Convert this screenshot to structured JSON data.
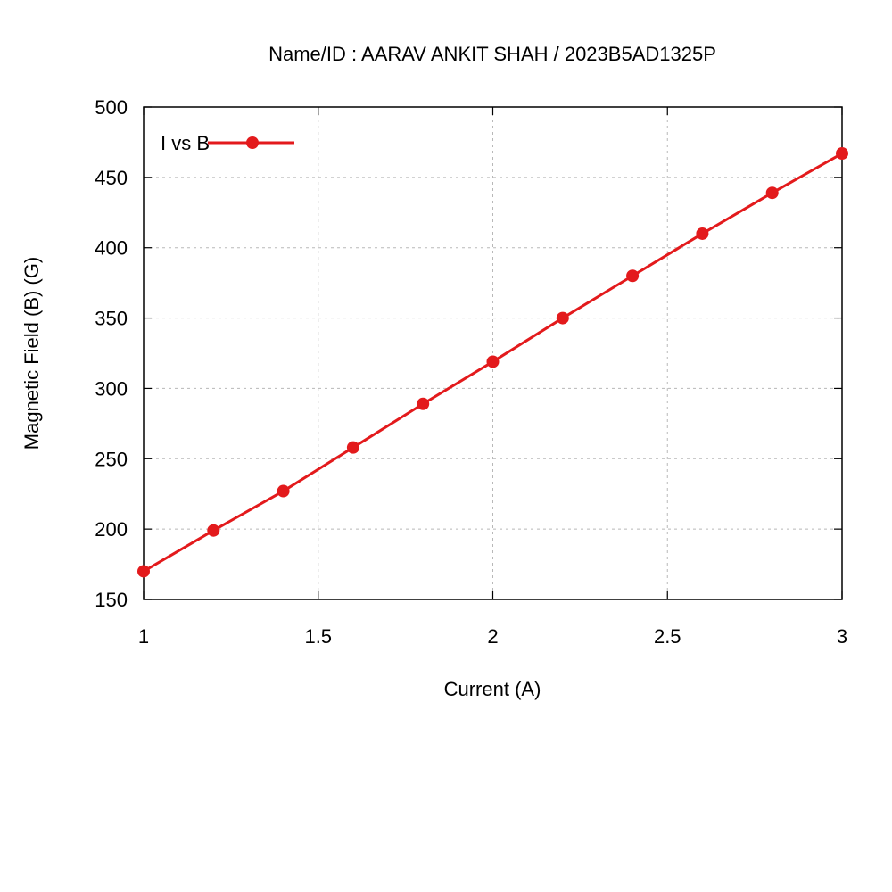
{
  "chart_data": {
    "type": "line",
    "title": "Name/ID : AARAV ANKIT SHAH / 2023B5AD1325P",
    "xlabel": "Current (A)",
    "ylabel": "Magnetic Field (B) (G)",
    "xlim": [
      1,
      3
    ],
    "ylim": [
      150,
      500
    ],
    "xticks": [
      1,
      1.5,
      2,
      2.5,
      3
    ],
    "yticks": [
      150,
      200,
      250,
      300,
      350,
      400,
      450,
      500
    ],
    "x_tick_labels": [
      "1",
      "1.5",
      "2",
      "2.5",
      "3"
    ],
    "y_tick_labels": [
      "150",
      "200",
      "250",
      "300",
      "350",
      "400",
      "450",
      "500"
    ],
    "grid": true,
    "legend_position": "top-left",
    "series": [
      {
        "name": "I vs B",
        "color": "#e31a1c",
        "x": [
          1.0,
          1.2,
          1.4,
          1.6,
          1.8,
          2.0,
          2.2,
          2.4,
          2.6,
          2.8,
          3.0
        ],
        "y": [
          170,
          199,
          227,
          258,
          289,
          319,
          350,
          380,
          410,
          439,
          467
        ]
      }
    ]
  }
}
